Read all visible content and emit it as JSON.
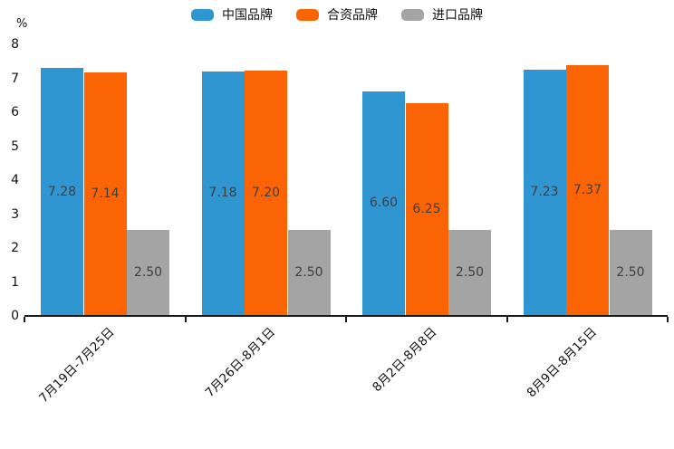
{
  "chart_data": {
    "type": "bar",
    "title": "",
    "xlabel": "",
    "ylabel": "%",
    "categories": [
      "7月19日-7月25日",
      "7月26日-8月1日",
      "8月2日-8月8日",
      "8月9日-8月15日"
    ],
    "series": [
      {
        "name": "中国品牌",
        "color": "#3096D2",
        "values": [
          7.28,
          7.18,
          6.6,
          7.23
        ],
        "labels": [
          "7.28",
          "7.18",
          "6.60",
          "7.23"
        ]
      },
      {
        "name": "合资品牌",
        "color": "#FB6404",
        "values": [
          7.14,
          7.2,
          6.25,
          7.37
        ],
        "labels": [
          "7.14",
          "7.20",
          "6.25",
          "7.37"
        ]
      },
      {
        "name": "进口品牌",
        "color": "#A4A4A4",
        "values": [
          2.5,
          2.5,
          2.5,
          2.5
        ],
        "labels": [
          "2.50",
          "2.50",
          "2.50",
          "2.50"
        ]
      }
    ],
    "ylim": [
      0,
      8
    ],
    "yticks": [
      0,
      1,
      2,
      3,
      4,
      5,
      6,
      7,
      8
    ],
    "legend_position": "top",
    "grid": false,
    "axis_color": "#1A1A1A",
    "value_label_color": "#3F3F3F"
  }
}
